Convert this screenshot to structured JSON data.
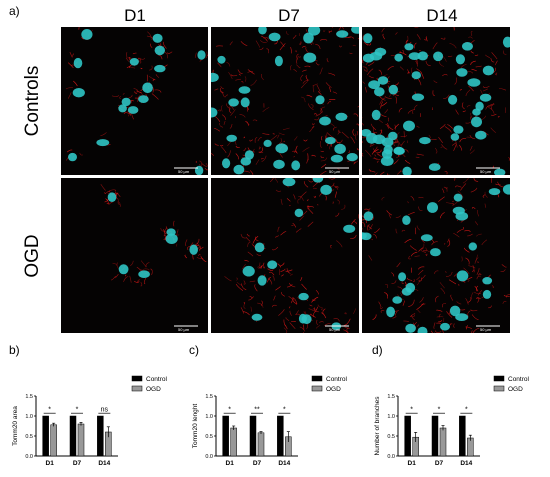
{
  "figure": {
    "panel_a": "a)",
    "panel_b": "b)",
    "panel_c": "c)",
    "panel_d": "d)",
    "columns": [
      "D1",
      "D7",
      "D14"
    ],
    "rows": [
      "Controls",
      "OGD"
    ],
    "scale_bar": "50 µm",
    "colors": {
      "signal": "#d81818",
      "nuclei": "#2fc4c4",
      "background": "#050303"
    }
  },
  "chart_data": [
    {
      "type": "bar",
      "panel": "b)",
      "ylabel": "Tomm20 area",
      "categories": [
        "D1",
        "D7",
        "D14"
      ],
      "series": [
        {
          "name": "Control",
          "values": [
            1.0,
            1.0,
            1.0
          ],
          "errors": [
            0,
            0,
            0
          ],
          "color": "#000000"
        },
        {
          "name": "OGD",
          "values": [
            0.78,
            0.8,
            0.6
          ],
          "errors": [
            0.04,
            0.04,
            0.13
          ],
          "color": "#999999"
        }
      ],
      "ylim": [
        0,
        1.5
      ],
      "yticks": [
        "0.0",
        "0.5",
        "1.0",
        "1.5"
      ],
      "significance": [
        "*",
        "*",
        "ns"
      ],
      "legend": "right",
      "grid": false
    },
    {
      "type": "bar",
      "panel": "c)",
      "ylabel": "Tomm20 lenght",
      "categories": [
        "D1",
        "D7",
        "D14"
      ],
      "series": [
        {
          "name": "Control",
          "values": [
            1.0,
            1.0,
            1.0
          ],
          "errors": [
            0,
            0,
            0
          ],
          "color": "#000000"
        },
        {
          "name": "OGD",
          "values": [
            0.7,
            0.58,
            0.48
          ],
          "errors": [
            0.05,
            0.03,
            0.13
          ],
          "color": "#999999"
        }
      ],
      "ylim": [
        0,
        1.5
      ],
      "yticks": [
        "0.0",
        "0.5",
        "1.0",
        "1.5"
      ],
      "significance": [
        "*",
        "**",
        "*"
      ],
      "legend": "right",
      "grid": false
    },
    {
      "type": "bar",
      "panel": "d)",
      "ylabel": "Number of branches",
      "categories": [
        "D1",
        "D7",
        "D14"
      ],
      "series": [
        {
          "name": "Control",
          "values": [
            1.0,
            1.0,
            1.0
          ],
          "errors": [
            0,
            0,
            0
          ],
          "color": "#000000"
        },
        {
          "name": "OGD",
          "values": [
            0.47,
            0.7,
            0.45
          ],
          "errors": [
            0.12,
            0.06,
            0.07
          ],
          "color": "#999999"
        }
      ],
      "ylim": [
        0,
        1.5
      ],
      "yticks": [
        "0.0",
        "0.5",
        "1.0",
        "1.5"
      ],
      "significance": [
        "*",
        "*",
        "*"
      ],
      "legend": "right",
      "grid": false
    }
  ]
}
